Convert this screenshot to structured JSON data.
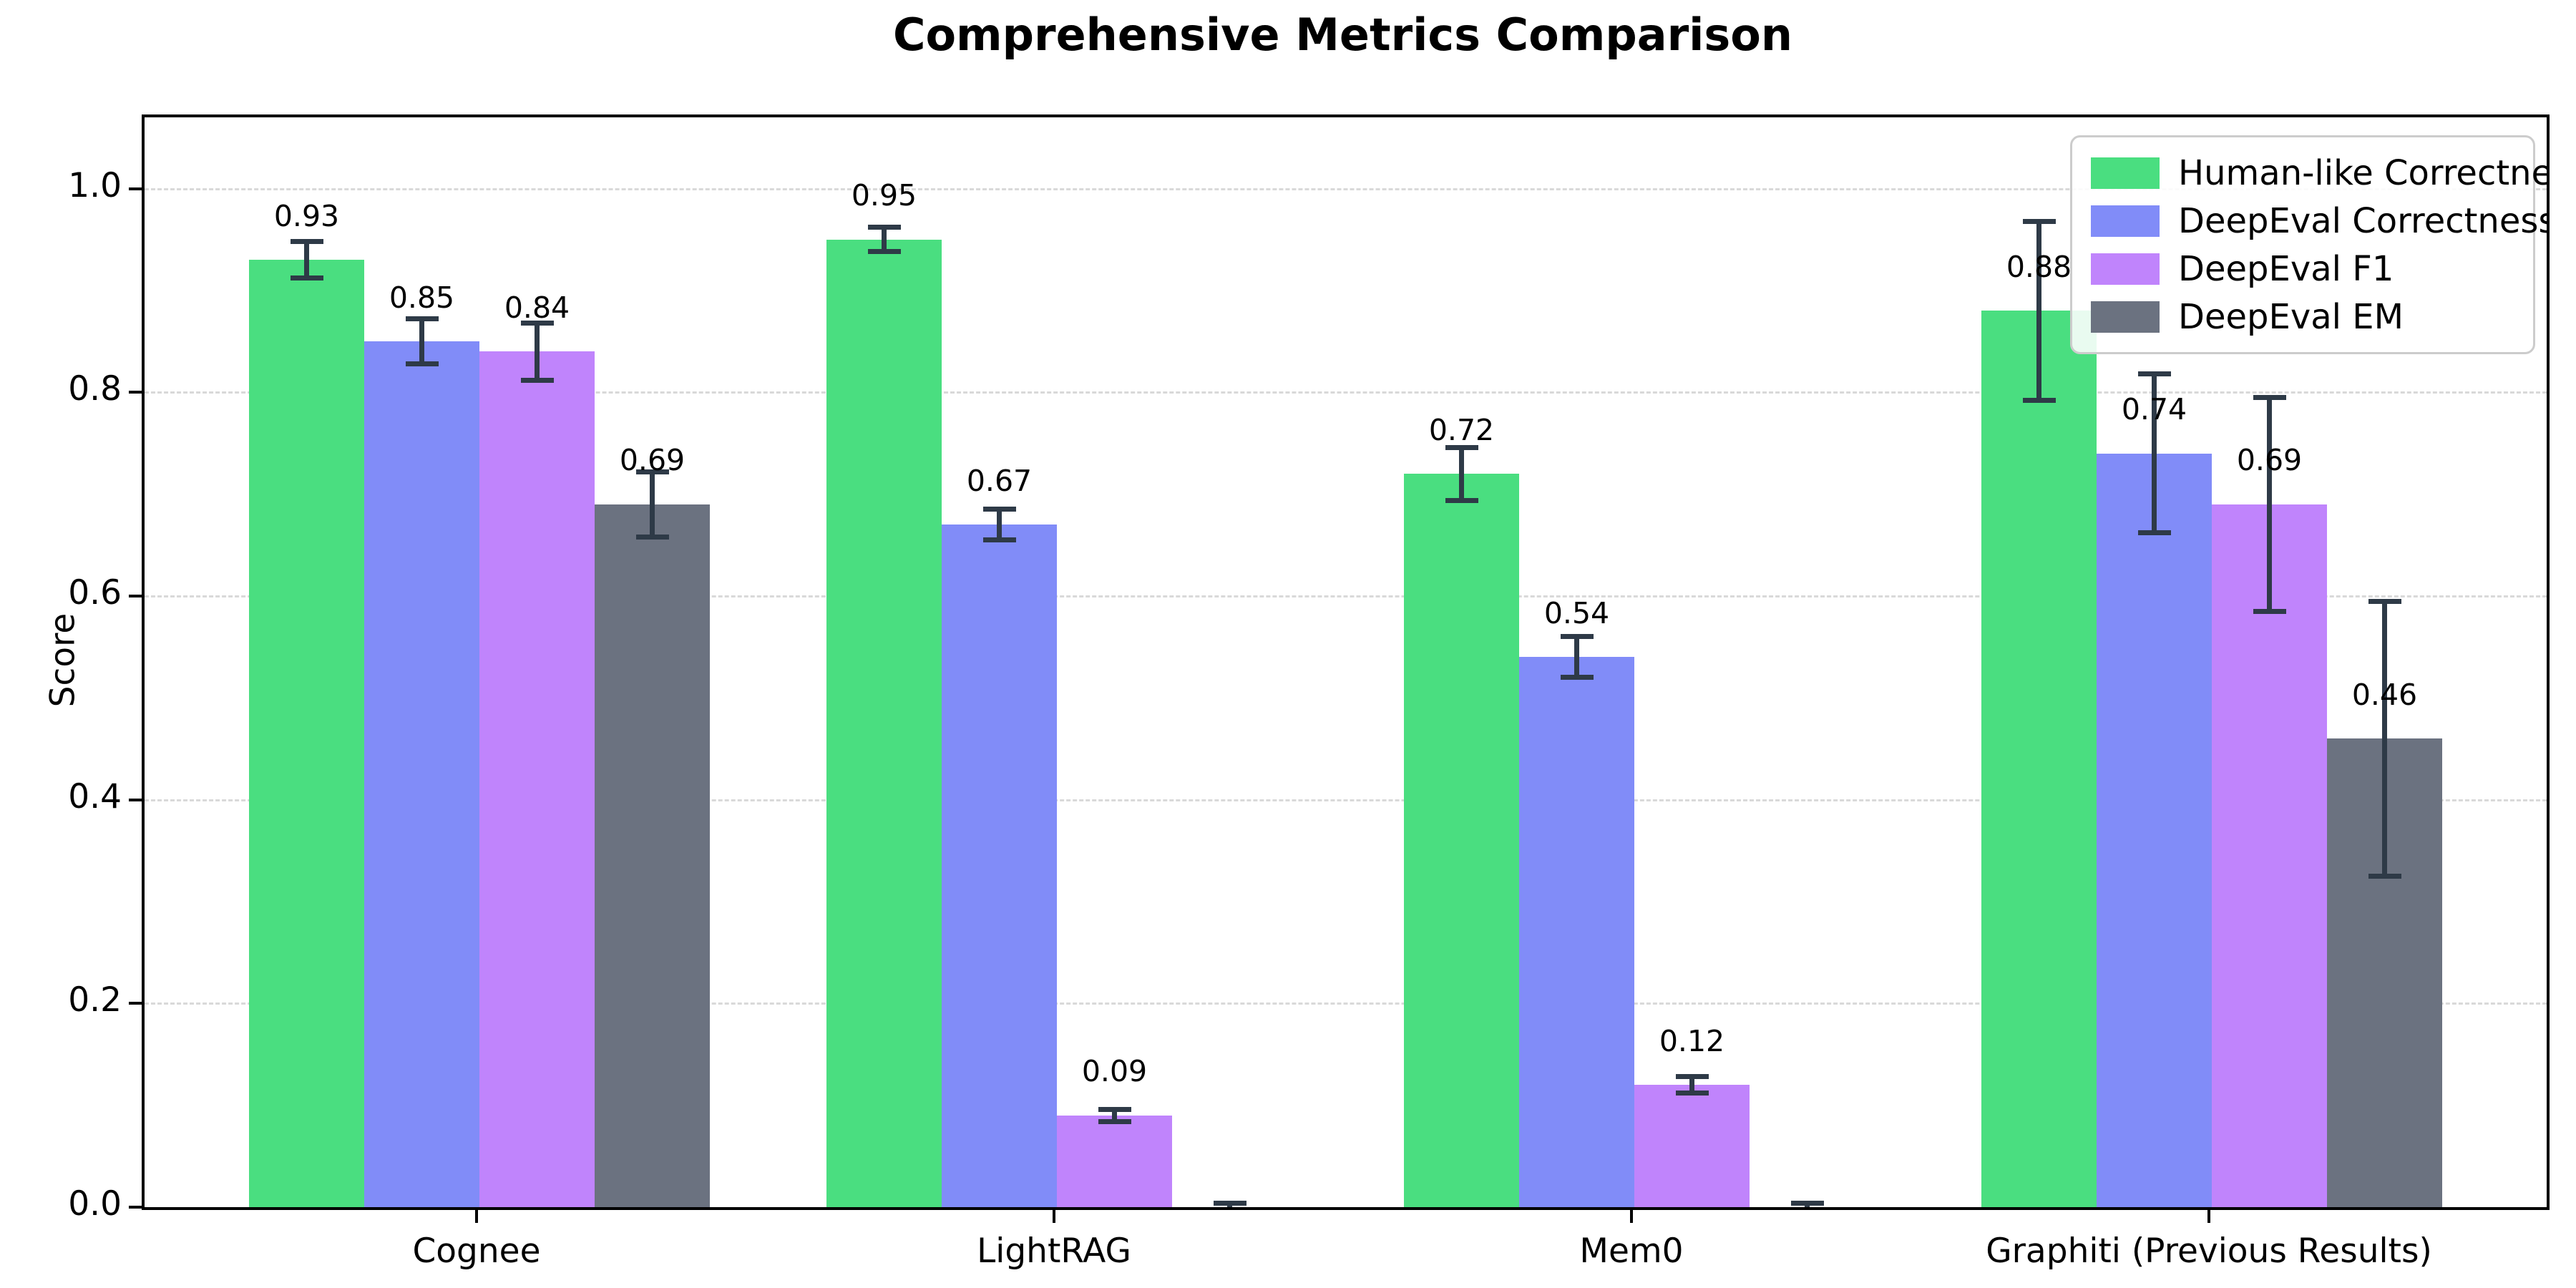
{
  "chart_data": {
    "type": "bar",
    "title": "Comprehensive Metrics Comparison",
    "ylabel": "Score",
    "xlabel": "",
    "categories": [
      "Cognee",
      "LightRAG",
      "Mem0",
      "Graphiti (Previous Results)"
    ],
    "series": [
      {
        "name": "Human-like Correctness",
        "color": "#4ade80",
        "values": [
          0.93,
          0.95,
          0.72,
          0.88
        ],
        "errors": [
          0.018,
          0.012,
          0.026,
          0.088
        ]
      },
      {
        "name": "DeepEval Correctness",
        "color": "#818cf8",
        "values": [
          0.85,
          0.67,
          0.54,
          0.74
        ],
        "errors": [
          0.022,
          0.015,
          0.02,
          0.078
        ]
      },
      {
        "name": "DeepEval F1",
        "color": "#c084fc",
        "values": [
          0.84,
          0.09,
          0.12,
          0.69
        ],
        "errors": [
          0.028,
          0.006,
          0.008,
          0.105
        ]
      },
      {
        "name": "DeepEval EM",
        "color": "#6b7280",
        "values": [
          0.69,
          0.0,
          0.0,
          0.46
        ],
        "errors": [
          0.032,
          0.004,
          0.004,
          0.135
        ]
      }
    ],
    "bar_value_labels": [
      [
        "0.93",
        "0.95",
        "0.72",
        "0.88"
      ],
      [
        "0.85",
        "0.67",
        "0.54",
        "0.74"
      ],
      [
        "0.84",
        "0.09",
        "0.12",
        "0.69"
      ],
      [
        "0.69",
        "",
        "",
        "0.46"
      ]
    ],
    "ylim": [
      0,
      1.07
    ],
    "yticks": [
      "0.0",
      "0.2",
      "0.4",
      "0.6",
      "0.8",
      "1.0"
    ],
    "grid": "horizontal-dashed",
    "legend_position": "upper-right",
    "error_bar_color": "#2e3a47",
    "axis_color": "#000000",
    "background_color": "#ffffff"
  }
}
